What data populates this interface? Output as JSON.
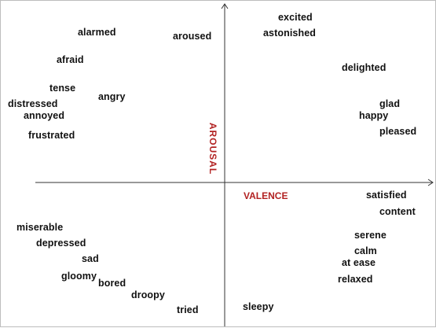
{
  "axes": {
    "vertical": {
      "label": "AROUSAL",
      "color": "#b22222"
    },
    "horizontal": {
      "label": "VALENCE",
      "color": "#b22222"
    },
    "line_color": "#333333"
  },
  "emotions": [
    {
      "name": "excited"
    },
    {
      "name": "astonished"
    },
    {
      "name": "alarmed"
    },
    {
      "name": "aroused"
    },
    {
      "name": "afraid"
    },
    {
      "name": "delighted"
    },
    {
      "name": "tense"
    },
    {
      "name": "angry"
    },
    {
      "name": "distressed"
    },
    {
      "name": "glad"
    },
    {
      "name": "annoyed"
    },
    {
      "name": "happy"
    },
    {
      "name": "pleased"
    },
    {
      "name": "frustrated"
    },
    {
      "name": "satisfied"
    },
    {
      "name": "content"
    },
    {
      "name": "miserable"
    },
    {
      "name": "serene"
    },
    {
      "name": "depressed"
    },
    {
      "name": "calm"
    },
    {
      "name": "sad"
    },
    {
      "name": "at ease"
    },
    {
      "name": "gloomy"
    },
    {
      "name": "bored"
    },
    {
      "name": "relaxed"
    },
    {
      "name": "droopy"
    },
    {
      "name": "sleepy"
    },
    {
      "name": "tried"
    }
  ]
}
